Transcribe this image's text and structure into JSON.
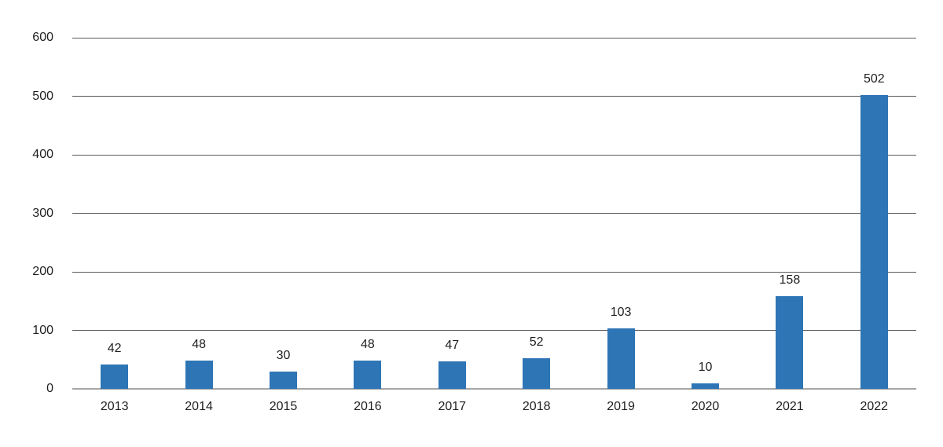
{
  "chart_data": {
    "type": "bar",
    "title": "",
    "xlabel": "",
    "ylabel": "",
    "categories": [
      "2013",
      "2014",
      "2015",
      "2016",
      "2017",
      "2018",
      "2019",
      "2020",
      "2021",
      "2022"
    ],
    "values": [
      42,
      48,
      30,
      48,
      47,
      52,
      103,
      10,
      158,
      502
    ],
    "value_labels": [
      "42",
      "48",
      "30",
      "48",
      "47",
      "52",
      "103",
      "10",
      "158",
      "502"
    ],
    "ylim": [
      0,
      600
    ],
    "yticks": [
      0,
      100,
      200,
      300,
      400,
      500,
      600
    ],
    "ytick_labels": [
      "0",
      "100",
      "200",
      "300",
      "400",
      "500",
      "600"
    ],
    "grid": true,
    "legend": false,
    "value_labels_shown": true,
    "colors": {
      "bar": "#2E75B6",
      "gridline": "#595959",
      "axis_line": "#A6A6A6",
      "text": "#1F1F1F",
      "background": "#FFFFFF"
    }
  }
}
